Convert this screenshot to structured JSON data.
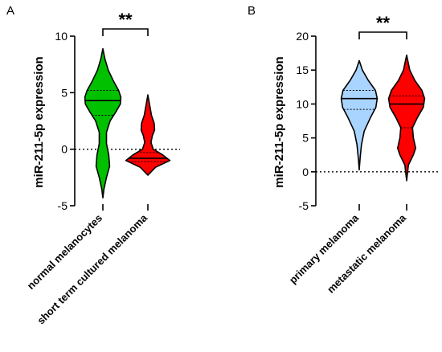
{
  "figure": {
    "background": "#ffffff",
    "axis_color": "#000000"
  },
  "chart_data": [
    {
      "type": "violin",
      "panel_label": "A",
      "ylabel": "miR-211-5p expression",
      "ylim": [
        -5,
        10
      ],
      "yticks": [
        -5,
        0,
        5,
        10
      ],
      "ytick_labels": [
        "-5",
        "0",
        "5",
        "10"
      ],
      "reference_line": 0,
      "categories": [
        "normal melanocytes",
        "short term cultured melanoma"
      ],
      "significance": "**",
      "series": [
        {
          "category": "normal melanocytes",
          "color": "#00c000",
          "median": 4.3,
          "quartiles": [
            3.0,
            5.2
          ],
          "density": [
            [
              -4.3,
              0.0
            ],
            [
              -3.5,
              0.05
            ],
            [
              -2.5,
              0.16
            ],
            [
              -1.5,
              0.3
            ],
            [
              -0.5,
              0.26
            ],
            [
              0.5,
              0.16
            ],
            [
              1.5,
              0.16
            ],
            [
              2.5,
              0.32
            ],
            [
              3.3,
              0.58
            ],
            [
              4.0,
              0.78
            ],
            [
              4.6,
              0.8
            ],
            [
              5.2,
              0.7
            ],
            [
              6.0,
              0.48
            ],
            [
              7.0,
              0.24
            ],
            [
              8.0,
              0.09
            ],
            [
              8.9,
              0.0
            ]
          ]
        },
        {
          "category": "short term cultured melanoma",
          "color": "#ff0000",
          "median": -0.8,
          "quartiles": [
            -1.1,
            -0.3
          ],
          "density": [
            [
              -2.3,
              0.0
            ],
            [
              -1.6,
              0.34
            ],
            [
              -1.0,
              0.98
            ],
            [
              -0.5,
              0.66
            ],
            [
              0.0,
              0.24
            ],
            [
              0.6,
              0.14
            ],
            [
              1.2,
              0.2
            ],
            [
              1.7,
              0.3
            ],
            [
              2.3,
              0.28
            ],
            [
              3.0,
              0.16
            ],
            [
              3.8,
              0.09
            ],
            [
              4.8,
              0.0
            ]
          ]
        }
      ]
    },
    {
      "type": "violin",
      "panel_label": "B",
      "ylabel": "miR-211-5p expression",
      "ylim": [
        -5,
        20
      ],
      "yticks": [
        -5,
        0,
        5,
        10,
        15,
        20
      ],
      "ytick_labels": [
        "-5",
        "0",
        "5",
        "10",
        "15",
        "20"
      ],
      "reference_line": 0,
      "categories": [
        "primary melanoma",
        "metastatic melanoma"
      ],
      "significance": "**",
      "series": [
        {
          "category": "primary melanoma",
          "color": "#a8d4ff",
          "median": 10.8,
          "quartiles": [
            9.2,
            12.0
          ],
          "density": [
            [
              0.3,
              0.0
            ],
            [
              2.0,
              0.04
            ],
            [
              4.0,
              0.1
            ],
            [
              6.0,
              0.22
            ],
            [
              8.0,
              0.5
            ],
            [
              9.5,
              0.74
            ],
            [
              10.8,
              0.8
            ],
            [
              12.0,
              0.72
            ],
            [
              13.5,
              0.4
            ],
            [
              15.0,
              0.14
            ],
            [
              16.4,
              0.0
            ]
          ]
        },
        {
          "category": "metastatic melanoma",
          "color": "#ff0000",
          "median": 10.0,
          "quartiles": [
            6.5,
            11.2
          ],
          "density": [
            [
              -1.3,
              0.0
            ],
            [
              1.0,
              0.08
            ],
            [
              2.5,
              0.3
            ],
            [
              3.5,
              0.4
            ],
            [
              5.0,
              0.3
            ],
            [
              6.5,
              0.26
            ],
            [
              8.0,
              0.48
            ],
            [
              9.5,
              0.74
            ],
            [
              10.8,
              0.8
            ],
            [
              12.0,
              0.68
            ],
            [
              13.5,
              0.36
            ],
            [
              15.0,
              0.14
            ],
            [
              17.2,
              0.0
            ]
          ]
        }
      ]
    }
  ]
}
